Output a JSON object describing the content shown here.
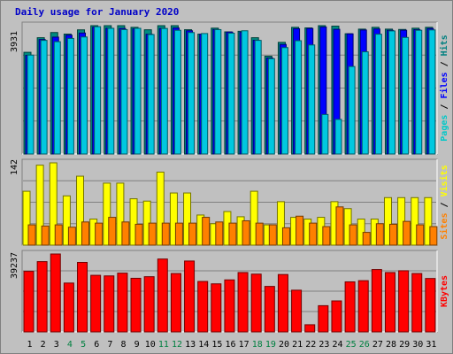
{
  "chart_data": {
    "type": "bar",
    "title": "Daily usage for January 2020",
    "categories": [
      "1",
      "2",
      "3",
      "4",
      "5",
      "6",
      "7",
      "8",
      "9",
      "10",
      "11",
      "12",
      "13",
      "14",
      "15",
      "16",
      "17",
      "18",
      "19",
      "20",
      "21",
      "22",
      "23",
      "24",
      "25",
      "26",
      "27",
      "28",
      "29",
      "30",
      "31"
    ],
    "weekend_days": [
      "4",
      "5",
      "11",
      "12",
      "18",
      "19",
      "25",
      "26"
    ],
    "panels": [
      {
        "name": "hits-files-pages",
        "max_label": "3931",
        "axis_label_parts": [
          {
            "text": "Pages",
            "color": "#00c8c8"
          },
          {
            "text": " / ",
            "color": "#000000"
          },
          {
            "text": "Files",
            "color": "#0000ff"
          },
          {
            "text": " / ",
            "color": "#000000"
          },
          {
            "text": "Hits",
            "color": "#008080"
          }
        ],
        "ylim": [
          0,
          3931
        ],
        "series": [
          {
            "name": "Hits",
            "color": "#008c80",
            "values": [
              3115,
              3562,
              3721,
              3673,
              3803,
              3931,
              3931,
              3931,
              3880,
              3805,
              3931,
              3931,
              3807,
              3672,
              3855,
              3741,
              3759,
              3562,
              2995,
              3420,
              3880,
              3862,
              3931,
              3917,
              3684,
              3825,
              3880,
              3825,
              3815,
              3853,
              3880
            ]
          },
          {
            "name": "Files",
            "color": "#0000ff",
            "values": [
              3021,
              3507,
              3580,
              3640,
              3706,
              3884,
              3852,
              3845,
              3833,
              3669,
              3845,
              3860,
              3775,
              3669,
              3812,
              3735,
              3733,
              3485,
              2940,
              3355,
              3838,
              3845,
              3888,
              3820,
              3680,
              3797,
              3830,
              3788,
              3790,
              3810,
              3843
            ]
          },
          {
            "name": "Pages",
            "color": "#00c8e0",
            "values": [
              3030,
              3480,
              3440,
              3540,
              3585,
              3900,
              3850,
              3810,
              3850,
              3660,
              3845,
              3790,
              3720,
              3690,
              3810,
              3700,
              3775,
              3480,
              2920,
              3260,
              3470,
              3340,
              1210,
              1060,
              2680,
              3130,
              3670,
              3770,
              3570,
              3790,
              3800
            ]
          }
        ]
      },
      {
        "name": "visits-sites",
        "max_label": "142",
        "axis_label_parts": [
          {
            "text": "Sites",
            "color": "#ff8000"
          },
          {
            "text": " / ",
            "color": "#000000"
          },
          {
            "text": "Visits",
            "color": "#ffff00"
          }
        ],
        "ylim": [
          0,
          142
        ],
        "series": [
          {
            "name": "Visits",
            "color": "#ffff00",
            "values": [
              93,
              138,
              142,
              85,
              119,
              45,
              107,
              107,
              80,
              76,
              126,
              90,
              90,
              52,
              37,
              58,
              49,
              93,
              35,
              75,
              48,
              45,
              48,
              75,
              63,
              45,
              45,
              82,
              82,
              82,
              82
            ]
          },
          {
            "name": "Sites",
            "color": "#ff8000",
            "values": [
              35,
              33,
              35,
              31,
              40,
              38,
              48,
              40,
              36,
              38,
              38,
              38,
              38,
              48,
              40,
              38,
              42,
              38,
              35,
              30,
              50,
              38,
              32,
              66,
              35,
              22,
              37,
              36,
              41,
              35,
              32
            ]
          }
        ]
      },
      {
        "name": "kbytes",
        "max_label": "39237",
        "axis_label_parts": [
          {
            "text": "KBytes",
            "color": "#ff0000"
          }
        ],
        "ylim": [
          0,
          39237
        ],
        "series": [
          {
            "name": "KBytes",
            "color": "#ff0000",
            "values": [
              30500,
              35400,
              39237,
              24600,
              35000,
              28500,
              28200,
              29600,
              27000,
              27800,
              36700,
              29400,
              35700,
              25400,
              24200,
              26200,
              29900,
              29100,
              22900,
              28900,
              21000,
              3600,
              13200,
              15600,
              25200,
              25800,
              31400,
              29900,
              30800,
              29400,
              26900
            ]
          }
        ]
      }
    ]
  }
}
